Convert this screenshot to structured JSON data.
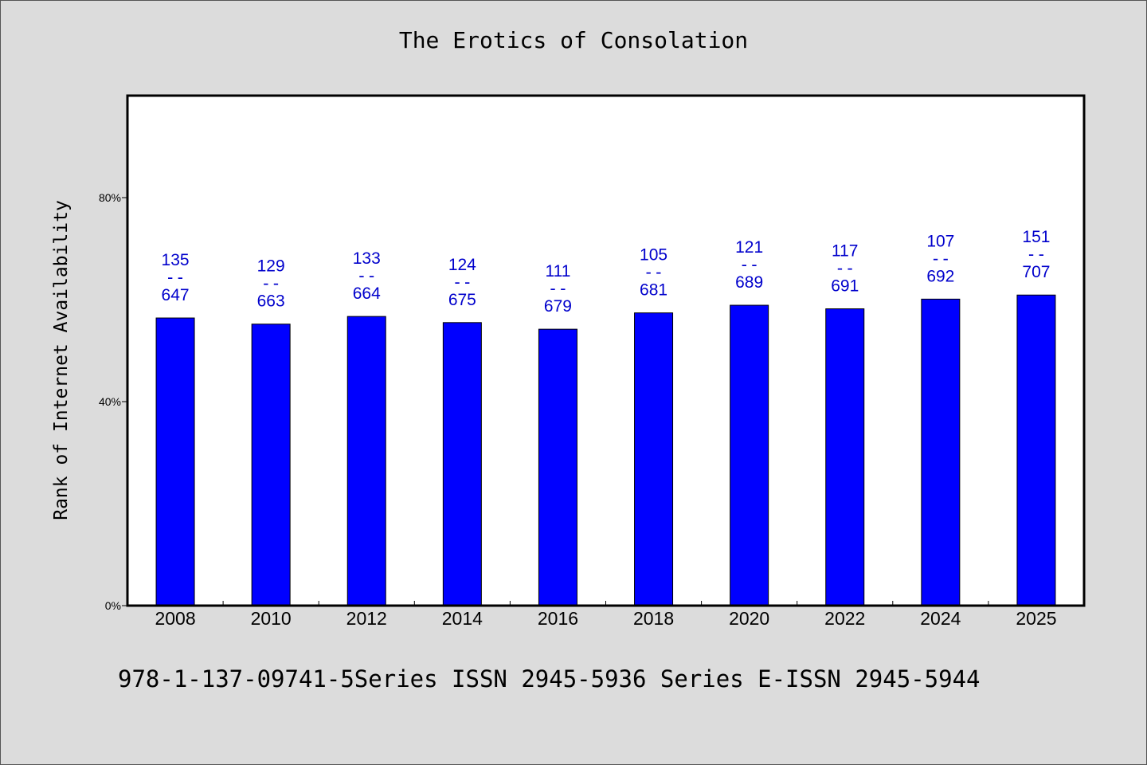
{
  "chart_data": {
    "type": "bar",
    "title": "The Erotics of Consolation",
    "ylabel": "Rank of Internet Availability",
    "xlabel": "",
    "ylim": [
      0,
      100
    ],
    "yticks": [
      {
        "value": 0,
        "label": "0%"
      },
      {
        "value": 40,
        "label": "40%"
      },
      {
        "value": 80,
        "label": "80%"
      }
    ],
    "categories": [
      "2008",
      "2010",
      "2012",
      "2014",
      "2016",
      "2018",
      "2020",
      "2022",
      "2024",
      "2025"
    ],
    "values": [
      56.4,
      55.2,
      56.7,
      55.5,
      54.2,
      57.4,
      58.9,
      58.2,
      60.1,
      60.9
    ],
    "data_labels": [
      {
        "top": "135",
        "sep": "--",
        "bottom": "647"
      },
      {
        "top": "129",
        "sep": "--",
        "bottom": "663"
      },
      {
        "top": "133",
        "sep": "--",
        "bottom": "664"
      },
      {
        "top": "124",
        "sep": "--",
        "bottom": "675"
      },
      {
        "top": "111",
        "sep": "--",
        "bottom": "679"
      },
      {
        "top": "105",
        "sep": "--",
        "bottom": "681"
      },
      {
        "top": "121",
        "sep": "--",
        "bottom": "689"
      },
      {
        "top": "117",
        "sep": "--",
        "bottom": "691"
      },
      {
        "top": "107",
        "sep": "--",
        "bottom": "692"
      },
      {
        "top": "151",
        "sep": "--",
        "bottom": "707"
      }
    ],
    "bar_color": "#0000ff",
    "label_color": "#0000cc",
    "grid": false,
    "legend": "none"
  },
  "footer": {
    "text": "978-1-137-09741-5Series ISSN 2945-5936 Series E-ISSN 2945-5944"
  }
}
